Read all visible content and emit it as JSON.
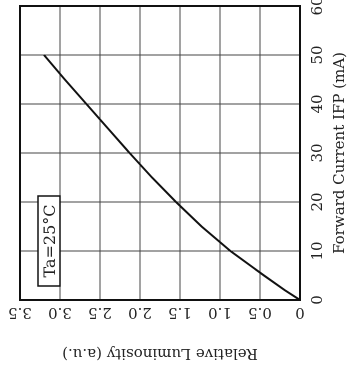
{
  "chart_data": {
    "type": "line",
    "orientation": "rotated 90 degrees (x axis runs vertically, y axis horizontally)",
    "xlabel": "Forward Current  IFP (mA)",
    "ylabel": "Relative Luminosity (a.u.)",
    "xlim": [
      0,
      60
    ],
    "ylim": [
      0,
      3.5
    ],
    "x_ticks": [
      "0",
      "10",
      "20",
      "30",
      "40",
      "50",
      "60"
    ],
    "y_ticks": [
      "0",
      "0.5",
      "1.0",
      "1.5",
      "2.0",
      "2.5",
      "3.0",
      "3.5"
    ],
    "grid": true,
    "annotation": "Ta=25°C",
    "series": [
      {
        "x": [
          0,
          2,
          5,
          10,
          15,
          20,
          25,
          30,
          35,
          40,
          45,
          50
        ],
        "values": [
          0,
          0.19,
          0.45,
          0.87,
          1.23,
          1.55,
          1.85,
          2.13,
          2.4,
          2.67,
          2.94,
          3.2
        ]
      }
    ],
    "color": "#111111"
  }
}
